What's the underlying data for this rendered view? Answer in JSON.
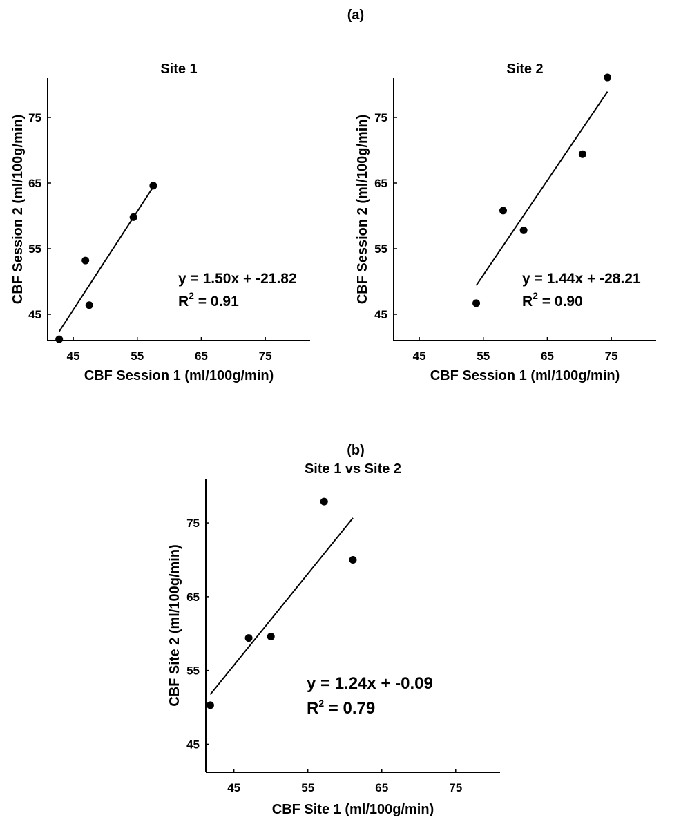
{
  "figure": {
    "panel_a_label": "(a)",
    "panel_b_label": "(b)"
  },
  "chart_data": [
    {
      "type": "scatter",
      "title": "Site 1",
      "xlabel": "CBF Session 1 (ml/100g/min)",
      "ylabel": "CBF Session 2 (ml/100g/min)",
      "xlim": [
        41,
        82
      ],
      "ylim": [
        41,
        81
      ],
      "xticks": [
        45,
        55,
        65,
        75
      ],
      "yticks": [
        45,
        55,
        65,
        75
      ],
      "x": [
        42.8,
        46.9,
        47.5,
        54.4,
        57.5
      ],
      "y": [
        41.2,
        53.2,
        46.4,
        59.8,
        64.6
      ],
      "fit": {
        "slope": 1.5,
        "intercept": -21.82,
        "x_range": [
          42.8,
          57.5
        ]
      },
      "annotation": {
        "equation": "y = 1.50x + -21.82",
        "r2_prefix": "R",
        "r2_exp": "2",
        "r2_value": " = 0.91"
      }
    },
    {
      "type": "scatter",
      "title": "Site 2",
      "xlabel": "CBF Session 1 (ml/100g/min)",
      "ylabel": "CBF Session 2 (ml/100g/min)",
      "xlim": [
        41,
        82
      ],
      "ylim": [
        41,
        81
      ],
      "xticks": [
        45,
        55,
        65,
        75
      ],
      "yticks": [
        45,
        55,
        65,
        75
      ],
      "x": [
        53.9,
        58.1,
        61.3,
        70.5,
        74.4
      ],
      "y": [
        46.7,
        60.8,
        57.8,
        69.4,
        81.1
      ],
      "fit": {
        "slope": 1.44,
        "intercept": -28.21,
        "x_range": [
          53.9,
          74.4
        ]
      },
      "annotation": {
        "equation": "y = 1.44x + -28.21",
        "r2_prefix": "R",
        "r2_exp": "2",
        "r2_value": " = 0.90"
      }
    },
    {
      "type": "scatter",
      "title": "Site 1 vs Site 2",
      "xlabel": "CBF Site 1 (ml/100g/min)",
      "ylabel": "CBF Site 2 (ml/100g/min)",
      "xlim": [
        41.2,
        81
      ],
      "ylim": [
        41.2,
        81
      ],
      "xticks": [
        45,
        55,
        65,
        75
      ],
      "yticks": [
        45,
        55,
        65,
        75
      ],
      "x": [
        41.8,
        47.0,
        50.0,
        57.2,
        61.1
      ],
      "y": [
        50.3,
        59.4,
        59.6,
        77.9,
        70.0
      ],
      "fit": {
        "slope": 1.24,
        "intercept": -0.09,
        "x_range": [
          41.8,
          61.1
        ]
      },
      "annotation": {
        "equation": "y = 1.24x + -0.09",
        "r2_prefix": "R",
        "r2_exp": "2",
        "r2_value": " = 0.79"
      }
    }
  ]
}
